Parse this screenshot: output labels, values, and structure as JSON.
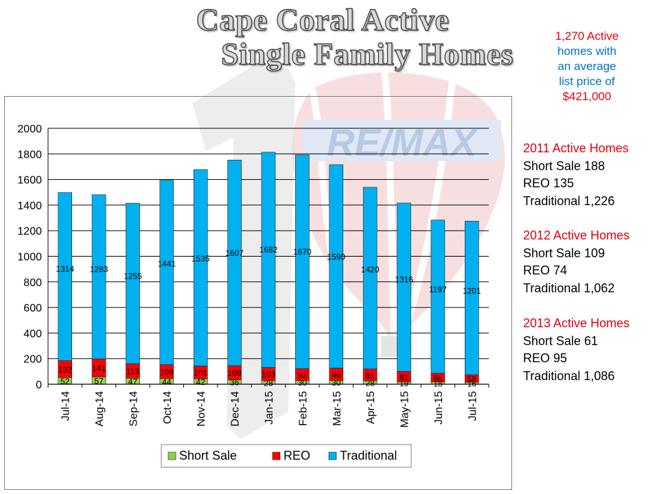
{
  "title": {
    "line1": "Cape Coral Active",
    "line2": "Single Family Homes"
  },
  "summary": {
    "line1": "1,270 Active",
    "line2": "homes with",
    "line3": "an average",
    "line4": "list price of",
    "line5": "$421,000"
  },
  "year_stats": [
    {
      "header": "2011 Active Homes",
      "short_sale": "Short Sale 188",
      "reo": "REO 135",
      "traditional": "Traditional 1,226"
    },
    {
      "header": "2012 Active Homes",
      "short_sale": "Short Sale 109",
      "reo": "REO 74",
      "traditional": "Traditional 1,062"
    },
    {
      "header": "2013 Active Homes",
      "short_sale": "Short Sale 61",
      "reo": "REO 95",
      "traditional": "Traditional 1,086"
    }
  ],
  "colors": {
    "short_sale": "#92d050",
    "reo": "#ff0000",
    "traditional": "#00b0f0",
    "summary_red": "#e2000f",
    "summary_blue": "#0070c0"
  },
  "chart_data": {
    "type": "bar",
    "stacked": true,
    "categories": [
      "Jul-14",
      "Aug-14",
      "Sep-14",
      "Oct-14",
      "Nov-14",
      "Dec-14",
      "Jan-15",
      "Feb-15",
      "Mar-15",
      "Apr-15",
      "May-15",
      "Jun-15",
      "Jul-15"
    ],
    "series": [
      {
        "name": "Short Sale",
        "values": [
          52,
          57,
          47,
          44,
          42,
          36,
          28,
          30,
          30,
          28,
          19,
          18,
          16
        ]
      },
      {
        "name": "REO",
        "values": [
          132,
          141,
          113,
          109,
          101,
          109,
          103,
          92,
          96,
          91,
          81,
          68,
          58
        ]
      },
      {
        "name": "Traditional",
        "values": [
          1314,
          1283,
          1255,
          1441,
          1535,
          1607,
          1682,
          1670,
          1590,
          1420,
          1316,
          1197,
          1201
        ]
      }
    ],
    "ylim": [
      0,
      2000
    ],
    "yticks": [
      0,
      200,
      400,
      600,
      800,
      1000,
      1200,
      1400,
      1600,
      1800,
      2000
    ],
    "grid": true,
    "legend": "bottom"
  }
}
